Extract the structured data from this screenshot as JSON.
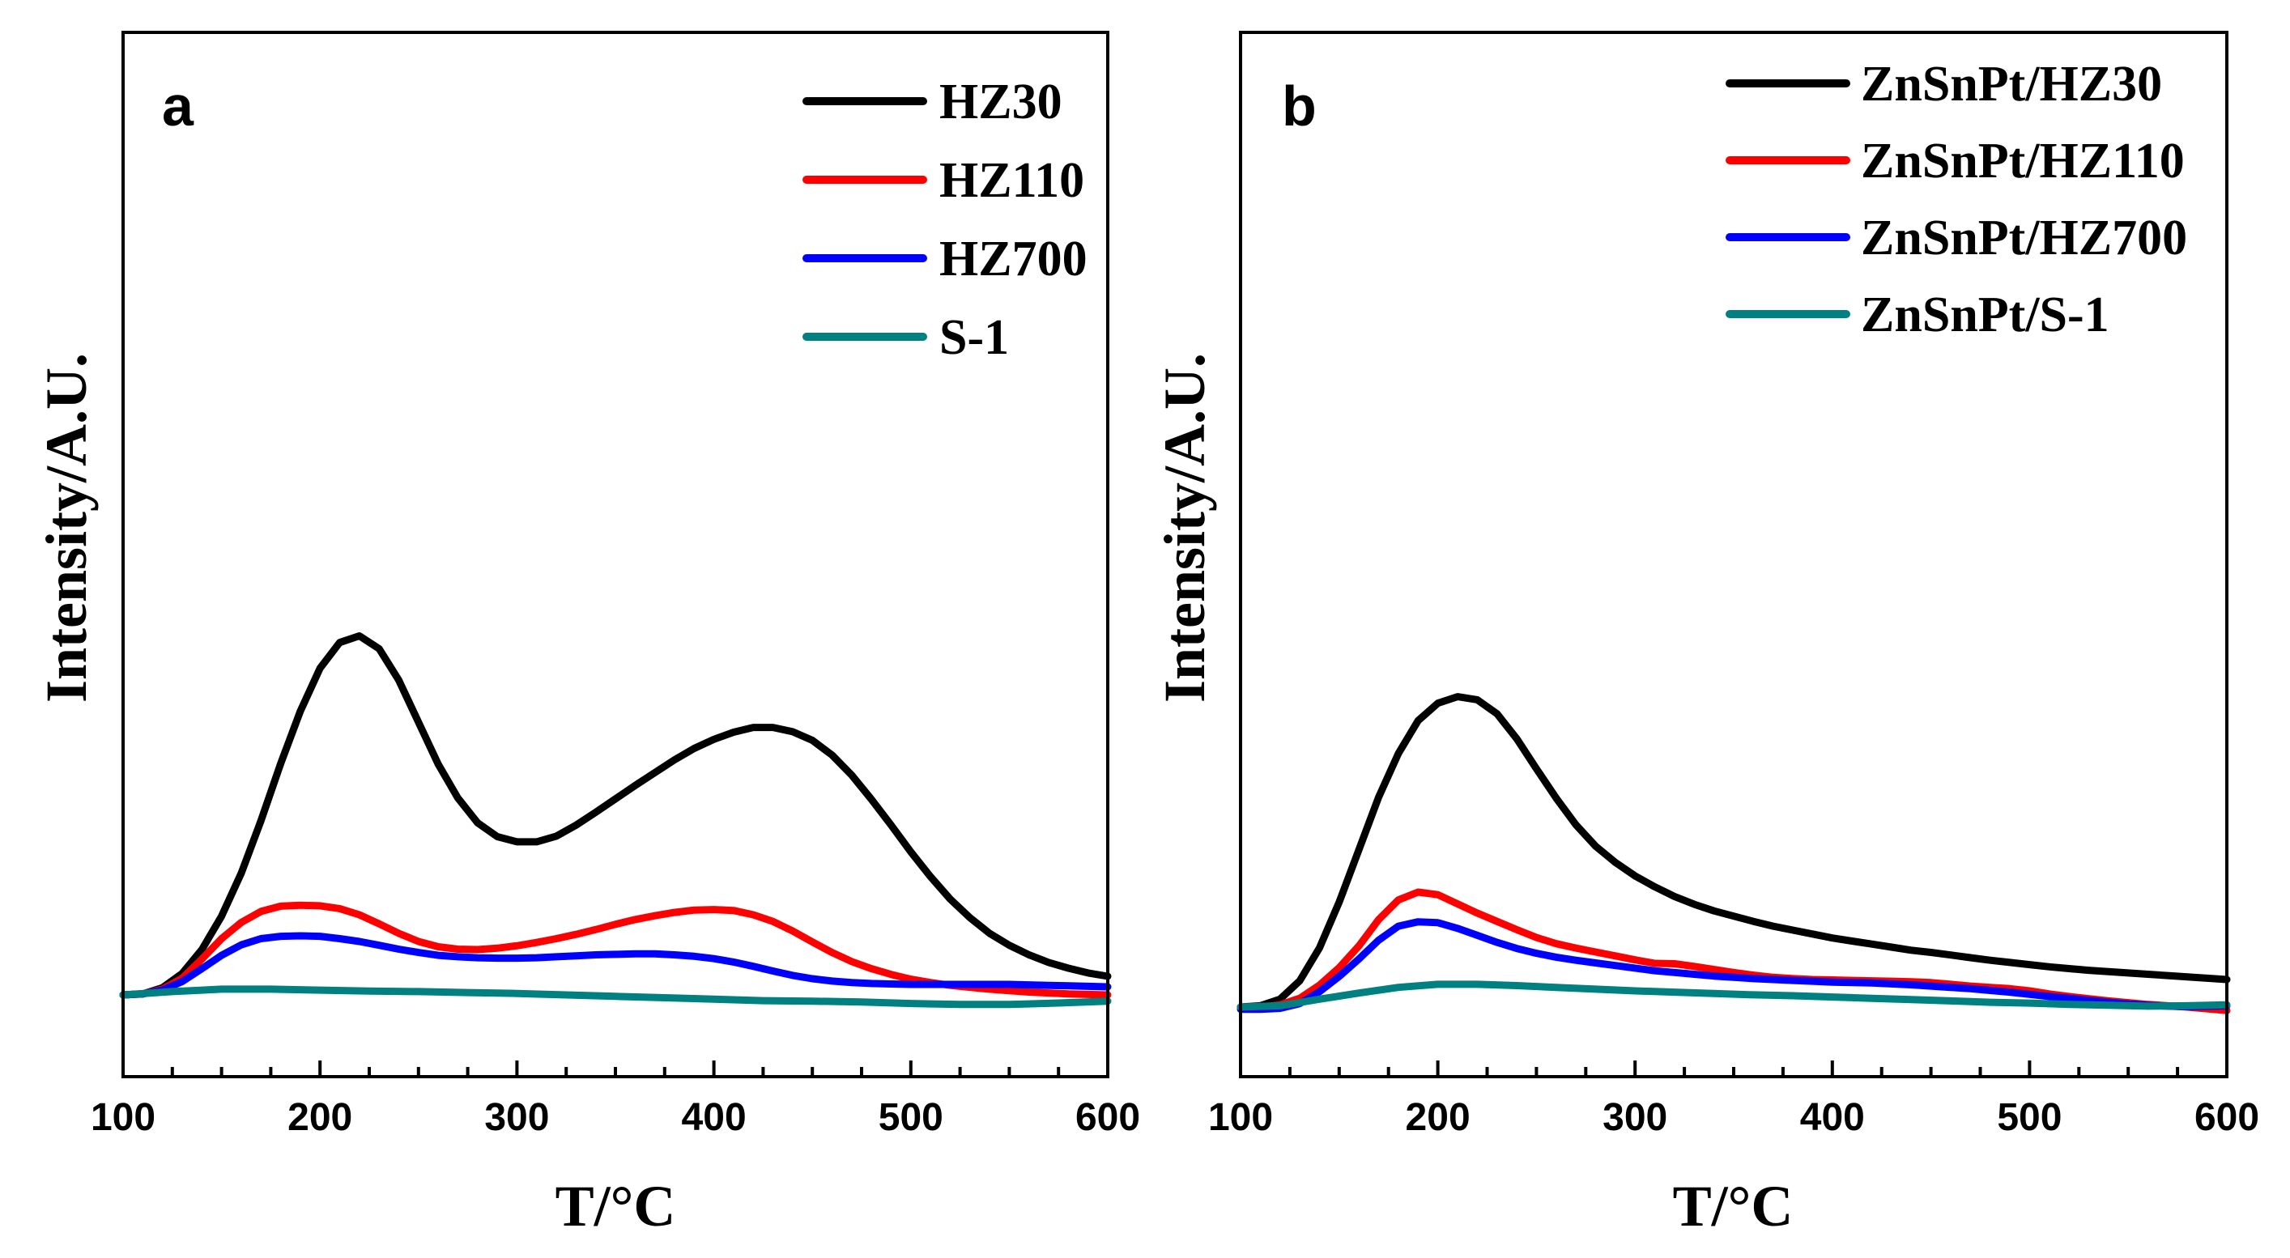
{
  "chart_data": [
    {
      "type": "line",
      "panel_label": "a",
      "xlabel": "T/°C",
      "ylabel": "Intensity/A.U.",
      "xlim": [
        100,
        600
      ],
      "ylim": [
        0,
        100
      ],
      "xticks": [
        100,
        200,
        300,
        400,
        500,
        600
      ],
      "series": [
        {
          "name": "HZ30",
          "color": "#000000",
          "x": [
            100,
            110,
            120,
            130,
            140,
            150,
            160,
            170,
            180,
            190,
            200,
            210,
            220,
            230,
            240,
            250,
            260,
            270,
            280,
            290,
            300,
            310,
            320,
            330,
            340,
            350,
            360,
            370,
            380,
            390,
            400,
            410,
            420,
            430,
            440,
            450,
            460,
            470,
            480,
            490,
            500,
            510,
            520,
            530,
            540,
            550,
            560,
            570,
            580,
            590,
            600
          ],
          "y": [
            0,
            0.2,
            1.5,
            4.5,
            9.5,
            16.5,
            25.5,
            36.5,
            48.5,
            59.5,
            68.5,
            73.9,
            75.3,
            72.6,
            66,
            57.2,
            48.4,
            41.3,
            36.1,
            33.2,
            32.1,
            32.1,
            33.3,
            35.6,
            38.3,
            41.1,
            43.9,
            46.6,
            49.3,
            51.7,
            53.6,
            55.1,
            56.1,
            56.1,
            55.2,
            53.4,
            50.3,
            46.1,
            41,
            35.6,
            30,
            24.8,
            20.1,
            16.2,
            12.9,
            10.4,
            8.4,
            6.8,
            5.6,
            4.6,
            3.9
          ]
        },
        {
          "name": "HZ110",
          "color": "#ff0000",
          "x": [
            100,
            110,
            120,
            130,
            140,
            150,
            160,
            170,
            180,
            190,
            200,
            210,
            220,
            230,
            240,
            250,
            260,
            270,
            280,
            290,
            300,
            310,
            320,
            330,
            340,
            350,
            360,
            370,
            380,
            390,
            400,
            410,
            420,
            430,
            440,
            450,
            460,
            470,
            480,
            490,
            500,
            510,
            520,
            530,
            540,
            550,
            560,
            570,
            580,
            590,
            600
          ],
          "y": [
            0,
            0.2,
            1.2,
            3.5,
            7.5,
            11.8,
            15.2,
            17.5,
            18.6,
            18.8,
            18.7,
            18.1,
            16.8,
            14.9,
            12.9,
            11.2,
            10.1,
            9.6,
            9.5,
            9.8,
            10.3,
            11,
            11.8,
            12.7,
            13.7,
            14.8,
            15.8,
            16.6,
            17.3,
            17.8,
            17.9,
            17.7,
            16.8,
            15.4,
            13.4,
            11.1,
            8.9,
            7,
            5.5,
            4.3,
            3.3,
            2.6,
            2,
            1.6,
            1.2,
            0.9,
            0.6,
            0.4,
            0.2,
            0.1,
            0
          ]
        },
        {
          "name": "HZ700",
          "color": "#0000ff",
          "x": [
            100,
            110,
            120,
            130,
            140,
            150,
            160,
            170,
            180,
            190,
            200,
            210,
            220,
            230,
            240,
            250,
            260,
            270,
            280,
            290,
            300,
            310,
            320,
            330,
            340,
            350,
            360,
            370,
            380,
            390,
            400,
            410,
            420,
            430,
            440,
            450,
            460,
            470,
            480,
            490,
            500,
            510,
            520,
            530,
            540,
            550,
            560,
            570,
            580,
            590,
            600
          ],
          "y": [
            0,
            0.2,
            1,
            2.8,
            5.5,
            8.3,
            10.5,
            11.8,
            12.3,
            12.4,
            12.3,
            11.8,
            11.2,
            10.4,
            9.6,
            8.9,
            8.3,
            8,
            7.8,
            7.7,
            7.7,
            7.8,
            8,
            8.2,
            8.4,
            8.5,
            8.6,
            8.6,
            8.4,
            8.1,
            7.6,
            6.9,
            6,
            5,
            4.1,
            3.4,
            2.9,
            2.6,
            2.4,
            2.3,
            2.2,
            2.2,
            2.2,
            2.2,
            2.2,
            2.2,
            2.1,
            2,
            1.9,
            1.8,
            1.7
          ]
        },
        {
          "name": "S-1",
          "color": "#008080",
          "x": [
            100,
            125,
            150,
            175,
            200,
            225,
            250,
            275,
            300,
            325,
            350,
            375,
            400,
            425,
            450,
            475,
            500,
            525,
            550,
            575,
            600
          ],
          "y": [
            0,
            0.7,
            1.2,
            1.2,
            1,
            0.8,
            0.7,
            0.5,
            0.3,
            0,
            -0.3,
            -0.6,
            -0.9,
            -1.2,
            -1.3,
            -1.5,
            -1.8,
            -2,
            -2,
            -1.7,
            -1.3
          ]
        }
      ]
    },
    {
      "type": "line",
      "panel_label": "b",
      "xlabel": "T/°C",
      "ylabel": "Intensity/A.U.",
      "xlim": [
        100,
        600
      ],
      "ylim": [
        0,
        100
      ],
      "xticks": [
        100,
        200,
        300,
        400,
        500,
        600
      ],
      "series": [
        {
          "name": "ZnSnPt/HZ30",
          "color": "#000000",
          "x": [
            100,
            110,
            120,
            130,
            140,
            150,
            160,
            170,
            180,
            190,
            200,
            210,
            220,
            230,
            240,
            250,
            260,
            270,
            280,
            290,
            300,
            310,
            320,
            330,
            340,
            350,
            360,
            370,
            380,
            390,
            400,
            410,
            420,
            430,
            440,
            450,
            460,
            470,
            480,
            490,
            500,
            510,
            520,
            530,
            540,
            550,
            560,
            570,
            580,
            590,
            600
          ],
          "y": [
            0,
            0.3,
            1.8,
            6,
            13.5,
            24,
            36,
            48,
            58,
            65.5,
            69.5,
            71,
            70.3,
            67.1,
            61.4,
            54.5,
            47.8,
            41.7,
            36.8,
            33.1,
            30,
            27.5,
            25.3,
            23.5,
            22,
            20.8,
            19.6,
            18.5,
            17.6,
            16.7,
            15.8,
            15.1,
            14.4,
            13.7,
            13,
            12.5,
            11.9,
            11.3,
            10.7,
            10.2,
            9.7,
            9.2,
            8.8,
            8.4,
            8.1,
            7.8,
            7.5,
            7.2,
            6.9,
            6.6,
            6.3
          ]
        },
        {
          "name": "ZnSnPt/HZ110",
          "color": "#ff0000",
          "x": [
            100,
            110,
            120,
            130,
            140,
            150,
            160,
            170,
            180,
            190,
            200,
            210,
            220,
            230,
            240,
            250,
            260,
            270,
            280,
            290,
            300,
            310,
            320,
            330,
            340,
            350,
            360,
            370,
            380,
            390,
            400,
            410,
            420,
            430,
            440,
            450,
            460,
            470,
            480,
            490,
            500,
            510,
            520,
            530,
            540,
            550,
            560,
            570,
            580,
            590,
            600
          ],
          "y": [
            0,
            0,
            0.5,
            2,
            5,
            9,
            14,
            20,
            24.5,
            26.3,
            25.7,
            23.6,
            21.5,
            19.6,
            17.7,
            15.9,
            14.5,
            13.5,
            12.6,
            11.7,
            10.8,
            10,
            9.9,
            9.3,
            8.6,
            7.9,
            7.3,
            6.8,
            6.5,
            6.3,
            6.2,
            6.1,
            6,
            5.9,
            5.8,
            5.6,
            5.2,
            4.8,
            4.5,
            4.2,
            3.7,
            3,
            2.4,
            1.9,
            1.4,
            1,
            0.6,
            0.3,
            0,
            -0.4,
            -0.8
          ]
        },
        {
          "name": "ZnSnPt/HZ700",
          "color": "#0000ff",
          "x": [
            100,
            110,
            120,
            130,
            140,
            150,
            160,
            170,
            180,
            190,
            200,
            210,
            220,
            230,
            240,
            250,
            260,
            270,
            280,
            290,
            300,
            310,
            320,
            330,
            340,
            350,
            360,
            370,
            380,
            390,
            400,
            410,
            420,
            430,
            440,
            450,
            460,
            470,
            480,
            490,
            500,
            510,
            520,
            530,
            540,
            550,
            560,
            570,
            580,
            590,
            600
          ],
          "y": [
            -0.5,
            -0.5,
            -0.3,
            0.8,
            3.5,
            7,
            11,
            15.3,
            18.5,
            19.5,
            19.3,
            18,
            16.4,
            14.8,
            13.4,
            12.3,
            11.4,
            10.7,
            10.1,
            9.5,
            8.9,
            8.3,
            7.9,
            7.5,
            7.1,
            6.8,
            6.5,
            6.3,
            6.1,
            5.9,
            5.7,
            5.6,
            5.5,
            5.3,
            5.1,
            4.8,
            4.5,
            4.2,
            3.8,
            3.4,
            2.9,
            2.4,
            2,
            1.5,
            1.1,
            0.7,
            0.4,
            0.2,
            0.1,
            0.2,
            0.3
          ]
        },
        {
          "name": "ZnSnPt/S-1",
          "color": "#008080",
          "x": [
            100,
            120,
            140,
            160,
            180,
            200,
            220,
            240,
            260,
            280,
            300,
            320,
            340,
            360,
            380,
            400,
            420,
            440,
            460,
            480,
            500,
            520,
            540,
            560,
            580,
            600
          ],
          "y": [
            0,
            0.3,
            1.8,
            3.2,
            4.5,
            5.2,
            5.2,
            4.9,
            4.5,
            4.1,
            3.7,
            3.4,
            3.1,
            2.8,
            2.6,
            2.3,
            2,
            1.7,
            1.4,
            1.1,
            0.9,
            0.6,
            0.4,
            0.2,
            0.3,
            0.5
          ]
        }
      ]
    }
  ]
}
